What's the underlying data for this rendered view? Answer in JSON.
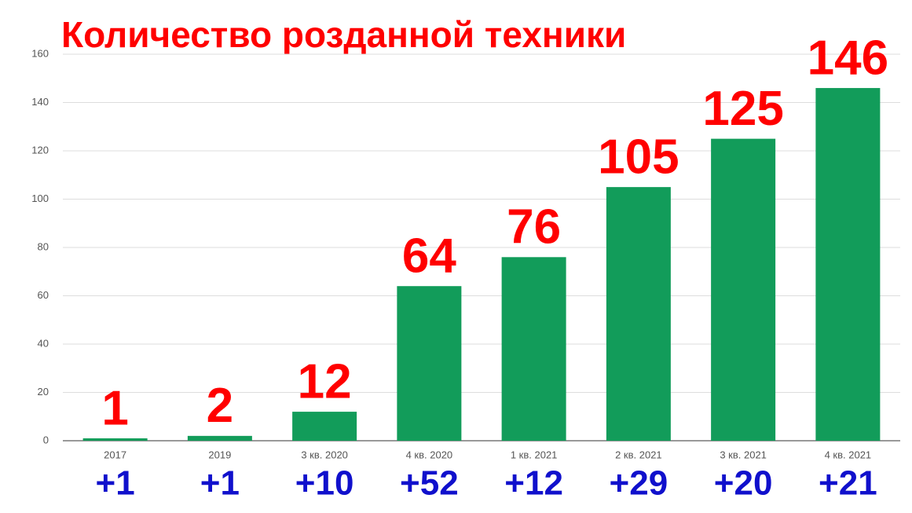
{
  "chart_data": {
    "type": "bar",
    "title": "Количество розданной техники",
    "categories": [
      "2017",
      "2019",
      "3 кв. 2020",
      "4 кв. 2020",
      "1 кв. 2021",
      "2 кв. 2021",
      "3 кв. 2021",
      "4 кв. 2021"
    ],
    "values": [
      1,
      2,
      12,
      64,
      76,
      105,
      125,
      146
    ],
    "changes": [
      "+1",
      "+1",
      "+10",
      "+52",
      "+12",
      "+29",
      "+20",
      "+21"
    ],
    "color": "#129c5a",
    "value_label_color": "#ff0000",
    "change_color": "#1010cc",
    "ylim": [
      0,
      160
    ],
    "yticks": [
      0,
      20,
      40,
      60,
      80,
      100,
      120,
      140,
      160
    ],
    "grid": true
  }
}
